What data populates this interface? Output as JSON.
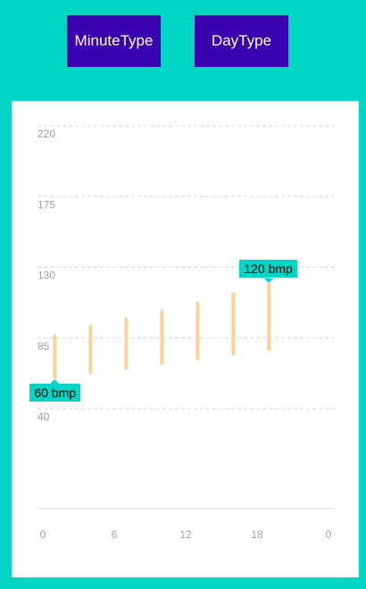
{
  "buttons": {
    "minute_label": "MinuteType",
    "day_label": "DayType"
  },
  "colors": {
    "background": "#00D6C6",
    "button": "#3A00B0",
    "range_bar": "#FAD29A",
    "tooltip": "#00D6C6"
  },
  "chart_data": {
    "type": "bar",
    "subtype": "range",
    "y_ticks": [
      "220",
      "175",
      "130",
      "85",
      "40"
    ],
    "y_tick_values": [
      220,
      175,
      130,
      85,
      40
    ],
    "x_ticks": [
      "0",
      "6",
      "12",
      "18",
      "0"
    ],
    "ylim": [
      40,
      220
    ],
    "grid": true,
    "series": [
      {
        "bars": [
          {
            "x": 1,
            "low": 60,
            "high": 86
          },
          {
            "x": 4,
            "low": 63,
            "high": 92
          },
          {
            "x": 7,
            "low": 66,
            "high": 97
          },
          {
            "x": 10,
            "low": 69,
            "high": 102
          },
          {
            "x": 13,
            "low": 72,
            "high": 107
          },
          {
            "x": 16,
            "low": 75,
            "high": 113
          },
          {
            "x": 19,
            "low": 78,
            "high": 119
          }
        ]
      }
    ],
    "annotations": {
      "min_label": "60 bmp",
      "max_label": "120 bmp"
    }
  }
}
